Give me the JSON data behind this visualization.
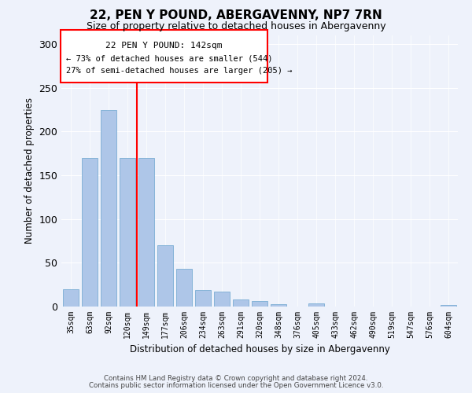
{
  "title": "22, PEN Y POUND, ABERGAVENNY, NP7 7RN",
  "subtitle": "Size of property relative to detached houses in Abergavenny",
  "xlabel": "Distribution of detached houses by size in Abergavenny",
  "ylabel": "Number of detached properties",
  "categories": [
    "35sqm",
    "63sqm",
    "92sqm",
    "120sqm",
    "149sqm",
    "177sqm",
    "206sqm",
    "234sqm",
    "263sqm",
    "291sqm",
    "320sqm",
    "348sqm",
    "376sqm",
    "405sqm",
    "433sqm",
    "462sqm",
    "490sqm",
    "519sqm",
    "547sqm",
    "576sqm",
    "604sqm"
  ],
  "values": [
    20,
    170,
    225,
    170,
    170,
    70,
    43,
    19,
    17,
    8,
    6,
    3,
    0,
    4,
    0,
    0,
    0,
    0,
    0,
    0,
    2
  ],
  "bar_color": "#aec6e8",
  "bar_edge_color": "#7aadd4",
  "vline_x_index": 4,
  "vline_color": "red",
  "annotation_title": "22 PEN Y POUND: 142sqm",
  "annotation_line1": "← 73% of detached houses are smaller (544)",
  "annotation_line2": "27% of semi-detached houses are larger (205) →",
  "annotation_box_color": "red",
  "ylim": [
    0,
    310
  ],
  "yticks": [
    0,
    50,
    100,
    150,
    200,
    250,
    300
  ],
  "footer_line1": "Contains HM Land Registry data © Crown copyright and database right 2024.",
  "footer_line2": "Contains public sector information licensed under the Open Government Licence v3.0.",
  "bg_color": "#eef2fb",
  "plot_bg_color": "#eef2fb",
  "title_fontsize": 11,
  "subtitle_fontsize": 9
}
